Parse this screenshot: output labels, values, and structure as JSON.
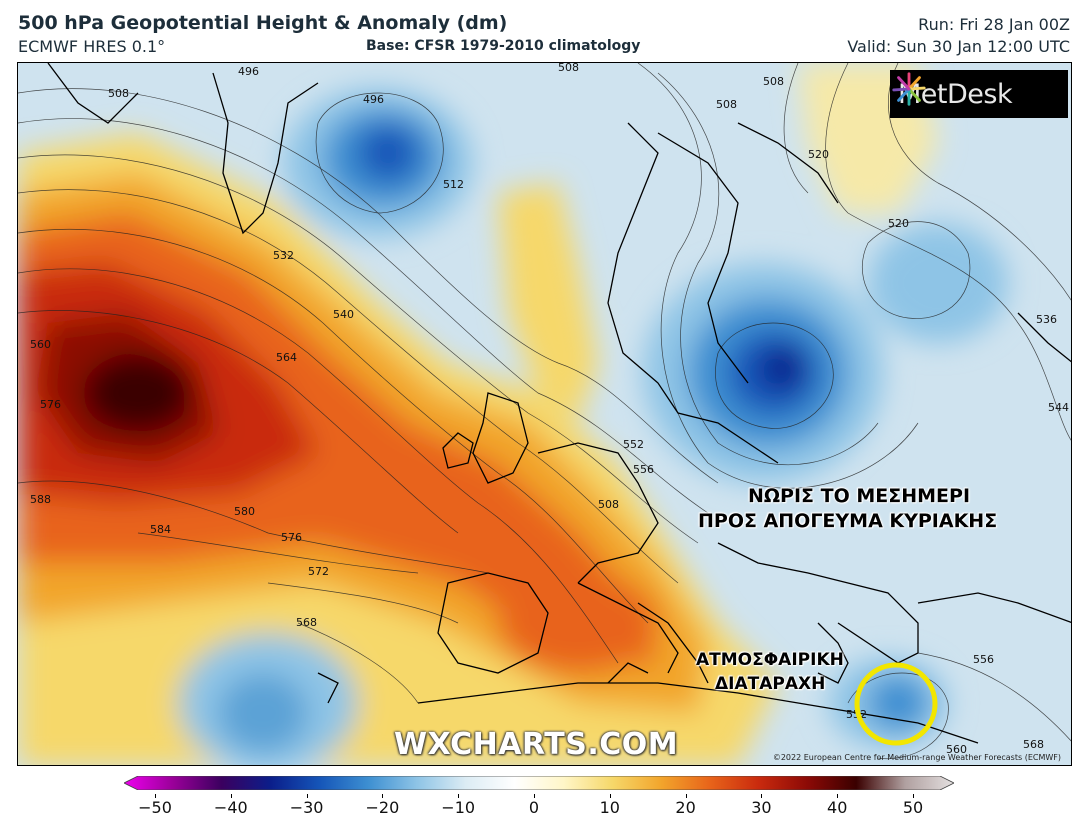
{
  "header": {
    "title": "500 hPa Geopotential Height & Anomaly (dm)",
    "model": "ECMWF HRES 0.1°",
    "base": "Base: CFSR 1979-2010 climatology",
    "run": "Run: Fri 28 Jan 00Z",
    "valid": "Valid: Sun 30 Jan 12:00 UTC"
  },
  "logo": {
    "text": "MetDesk",
    "icon": "metdesk-star-icon"
  },
  "annotations": {
    "line1": "ΝΩΡΙΣ ΤΟ ΜΕΣΗΜΕΡΙ",
    "line2": "ΠΡΟΣ ΑΠΟΓΕΥΜΑ ΚΥΡΙΑΚΗΣ",
    "line3": "ΑΤΜΟΣΦΑΙΡΙΚΗ",
    "line4": "ΔΙΑΤΑΡΑΧΗ",
    "circle_color": "#f2e600"
  },
  "watermark": "WXCHARTS.COM",
  "copyright": "©2022 European Centre for Medium-range Weather Forecasts (ECMWF)",
  "contour_labels": [
    "496",
    "500",
    "508",
    "512",
    "520",
    "532",
    "536",
    "540",
    "544",
    "552",
    "556",
    "560",
    "564",
    "568",
    "572",
    "576",
    "580",
    "584",
    "588"
  ],
  "colorbar": {
    "min": -50,
    "max": 50,
    "ticks": [
      "−50",
      "−40",
      "−30",
      "−20",
      "−10",
      "0",
      "10",
      "20",
      "30",
      "40",
      "50"
    ],
    "colors": [
      "#ee00ee",
      "#9a0099",
      "#3b005f",
      "#0b1e8a",
      "#1555b8",
      "#3d8fd1",
      "#8ec4e6",
      "#dcecf4",
      "#ffffff",
      "#fff6c8",
      "#f6d86a",
      "#f2a52c",
      "#e8641a",
      "#c92a0e",
      "#8c0a06",
      "#3a0000",
      "#b0a0a0",
      "#e4e0e0"
    ]
  }
}
